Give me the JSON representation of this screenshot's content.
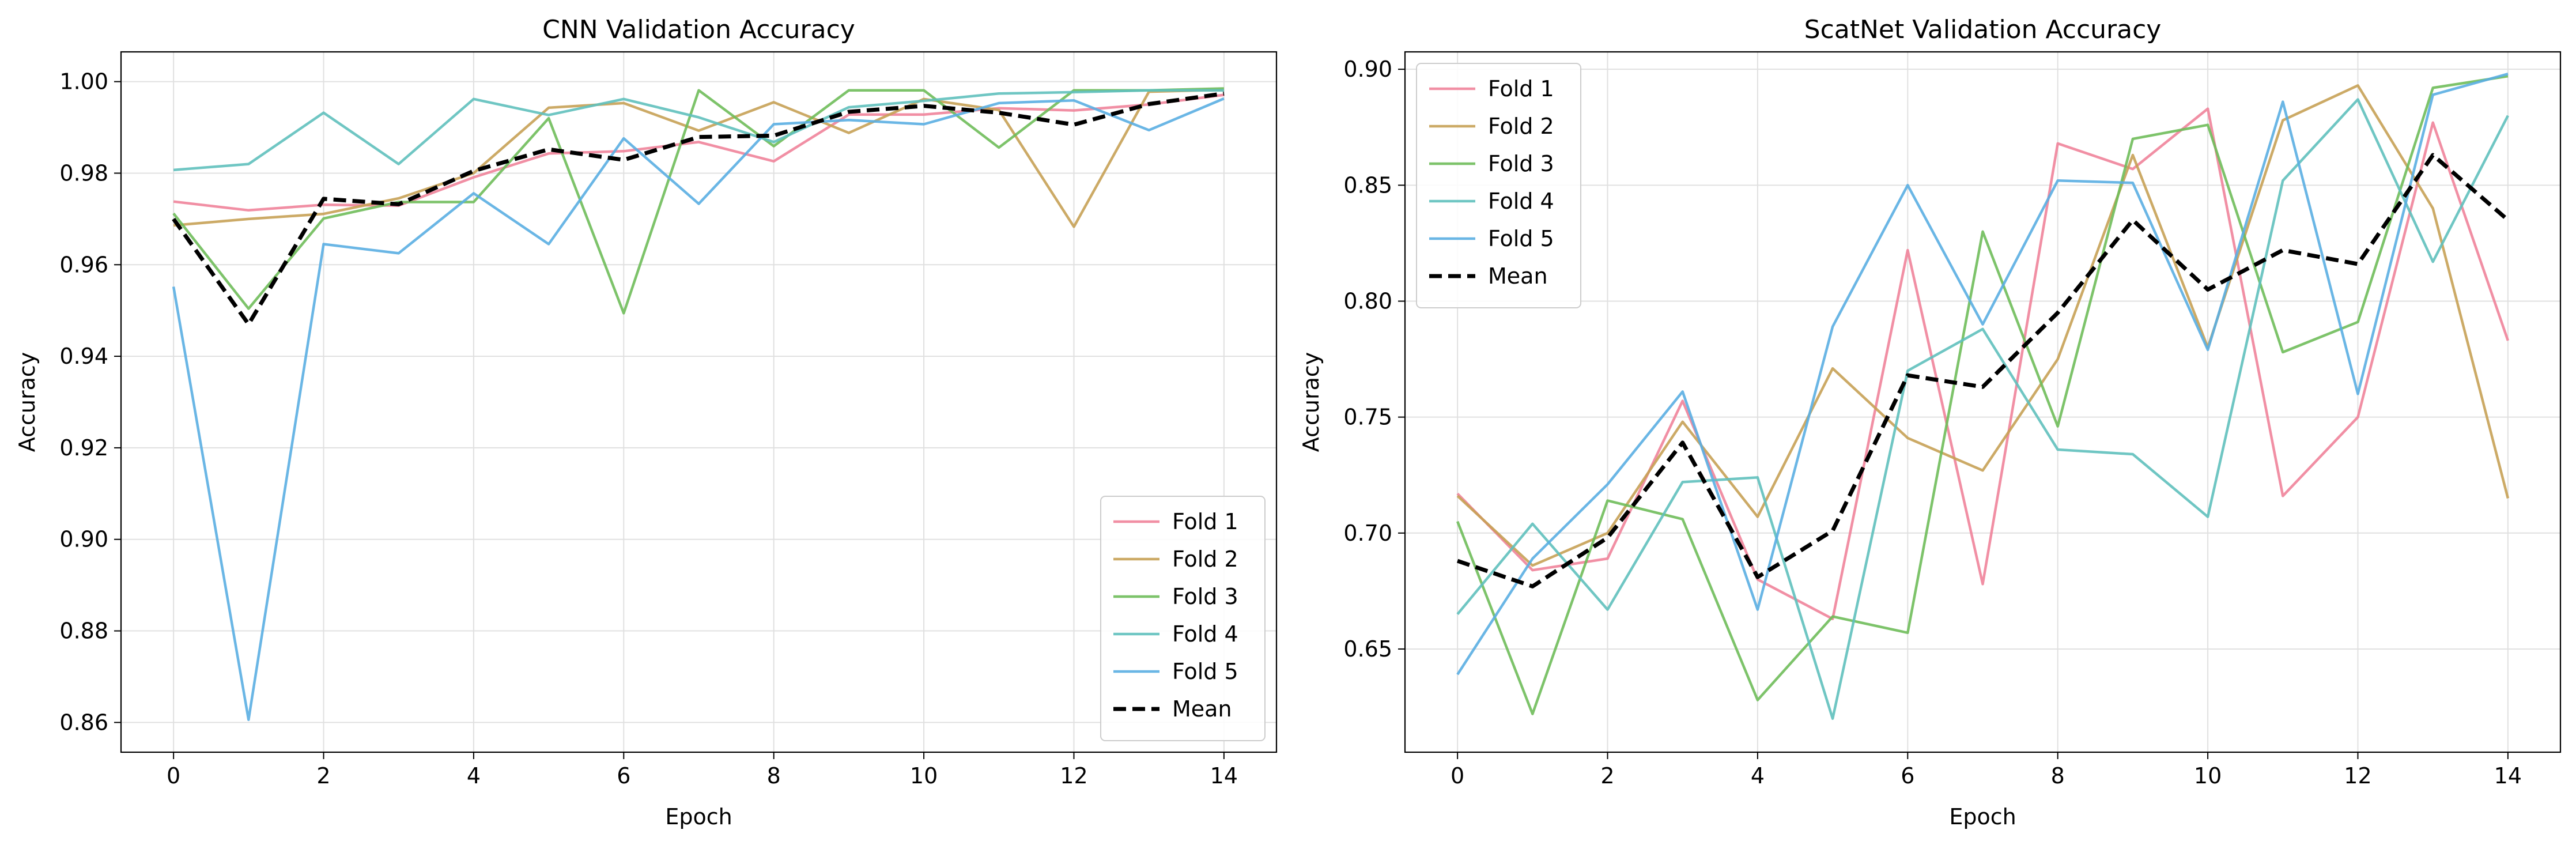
{
  "colors": {
    "fold1": "#f0839a",
    "fold2": "#c6a155",
    "fold3": "#6fbc5a",
    "fold4": "#5fc0bd",
    "fold5": "#5aaee2",
    "mean": "#000000",
    "grid": "#e0e0e0",
    "axis": "#000000"
  },
  "chart_data": [
    {
      "type": "line",
      "title": "CNN Validation Accuracy",
      "xlabel": "Epoch",
      "ylabel": "Accuracy",
      "xlim": [
        -0.7,
        14.7
      ],
      "ylim": [
        0.8535,
        1.0065
      ],
      "xticks": [
        0,
        2,
        4,
        6,
        8,
        10,
        12,
        14
      ],
      "xtick_labels": [
        "0",
        "2",
        "4",
        "6",
        "8",
        "10",
        "12",
        "14"
      ],
      "yticks": [
        0.86,
        0.88,
        0.9,
        0.92,
        0.94,
        0.96,
        0.98,
        1.0
      ],
      "ytick_labels": [
        "0.86",
        "0.88",
        "0.90",
        "0.92",
        "0.94",
        "0.96",
        "0.98",
        "1.00"
      ],
      "grid": true,
      "legend_position": "lower-right",
      "x": [
        0,
        1,
        2,
        3,
        4,
        5,
        6,
        7,
        8,
        9,
        10,
        11,
        12,
        13,
        14
      ],
      "series": [
        {
          "name": "Fold 1",
          "color_key": "fold1",
          "style": "solid",
          "values": [
            0.9738,
            0.9719,
            0.9731,
            0.9729,
            0.9791,
            0.9843,
            0.9848,
            0.9868,
            0.9826,
            0.9928,
            0.9928,
            0.9942,
            0.9937,
            0.995,
            0.9971
          ]
        },
        {
          "name": "Fold 2",
          "color_key": "fold2",
          "style": "solid",
          "values": [
            0.9686,
            0.97,
            0.9711,
            0.9745,
            0.98,
            0.9943,
            0.9953,
            0.9893,
            0.9955,
            0.9888,
            0.9962,
            0.9938,
            0.9683,
            0.9978,
            0.9982
          ]
        },
        {
          "name": "Fold 3",
          "color_key": "fold3",
          "style": "solid",
          "values": [
            0.9712,
            0.9504,
            0.9701,
            0.9737,
            0.9737,
            0.992,
            0.9494,
            0.9981,
            0.9859,
            0.9981,
            0.9981,
            0.9856,
            0.9981,
            0.9981,
            0.9985
          ]
        },
        {
          "name": "Fold 4",
          "color_key": "fold4",
          "style": "solid",
          "values": [
            0.9807,
            0.982,
            0.9932,
            0.982,
            0.9962,
            0.9927,
            0.9962,
            0.9922,
            0.9868,
            0.9944,
            0.9958,
            0.9974,
            0.9977,
            0.9981,
            0.9981
          ]
        },
        {
          "name": "Fold 5",
          "color_key": "fold5",
          "style": "solid",
          "values": [
            0.9552,
            0.8606,
            0.9645,
            0.9625,
            0.9756,
            0.9645,
            0.9876,
            0.9733,
            0.9907,
            0.9916,
            0.9907,
            0.9953,
            0.9959,
            0.9894,
            0.9963
          ]
        },
        {
          "name": "Mean",
          "color_key": "mean",
          "style": "dashed",
          "values": [
            0.97,
            0.947,
            0.9744,
            0.9732,
            0.9805,
            0.9852,
            0.9829,
            0.9879,
            0.9882,
            0.9934,
            0.9947,
            0.9932,
            0.9906,
            0.9951,
            0.9974
          ]
        }
      ]
    },
    {
      "type": "line",
      "title": "ScatNet Validation Accuracy",
      "xlabel": "Epoch",
      "ylabel": "Accuracy",
      "xlim": [
        -0.7,
        14.7
      ],
      "ylim": [
        0.6055,
        0.9075
      ],
      "xticks": [
        0,
        2,
        4,
        6,
        8,
        10,
        12,
        14
      ],
      "xtick_labels": [
        "0",
        "2",
        "4",
        "6",
        "8",
        "10",
        "12",
        "14"
      ],
      "yticks": [
        0.65,
        0.7,
        0.75,
        0.8,
        0.85,
        0.9
      ],
      "ytick_labels": [
        "0.65",
        "0.70",
        "0.75",
        "0.80",
        "0.85",
        "0.90"
      ],
      "grid": true,
      "legend_position": "upper-left",
      "x": [
        0,
        1,
        2,
        3,
        4,
        5,
        6,
        7,
        8,
        9,
        10,
        11,
        12,
        13,
        14
      ],
      "series": [
        {
          "name": "Fold 1",
          "color_key": "fold1",
          "style": "solid",
          "values": [
            0.717,
            0.684,
            0.689,
            0.757,
            0.68,
            0.663,
            0.822,
            0.678,
            0.868,
            0.857,
            0.883,
            0.716,
            0.75,
            0.877,
            0.783
          ]
        },
        {
          "name": "Fold 2",
          "color_key": "fold2",
          "style": "solid",
          "values": [
            0.716,
            0.686,
            0.7,
            0.748,
            0.707,
            0.771,
            0.741,
            0.727,
            0.775,
            0.863,
            0.78,
            0.878,
            0.893,
            0.84,
            0.715
          ]
        },
        {
          "name": "Fold 3",
          "color_key": "fold3",
          "style": "solid",
          "values": [
            0.705,
            0.622,
            0.714,
            0.706,
            0.628,
            0.664,
            0.657,
            0.83,
            0.746,
            0.87,
            0.876,
            0.778,
            0.791,
            0.892,
            0.897
          ]
        },
        {
          "name": "Fold 4",
          "color_key": "fold4",
          "style": "solid",
          "values": [
            0.665,
            0.704,
            0.667,
            0.722,
            0.724,
            0.62,
            0.77,
            0.788,
            0.736,
            0.734,
            0.707,
            0.852,
            0.887,
            0.817,
            0.88
          ]
        },
        {
          "name": "Fold 5",
          "color_key": "fold5",
          "style": "solid",
          "values": [
            0.639,
            0.689,
            0.721,
            0.761,
            0.667,
            0.789,
            0.85,
            0.79,
            0.852,
            0.851,
            0.779,
            0.886,
            0.76,
            0.889,
            0.898
          ]
        },
        {
          "name": "Mean",
          "color_key": "mean",
          "style": "dashed",
          "values": [
            0.688,
            0.677,
            0.698,
            0.739,
            0.681,
            0.701,
            0.768,
            0.763,
            0.795,
            0.835,
            0.805,
            0.822,
            0.816,
            0.863,
            0.835
          ]
        }
      ]
    }
  ]
}
